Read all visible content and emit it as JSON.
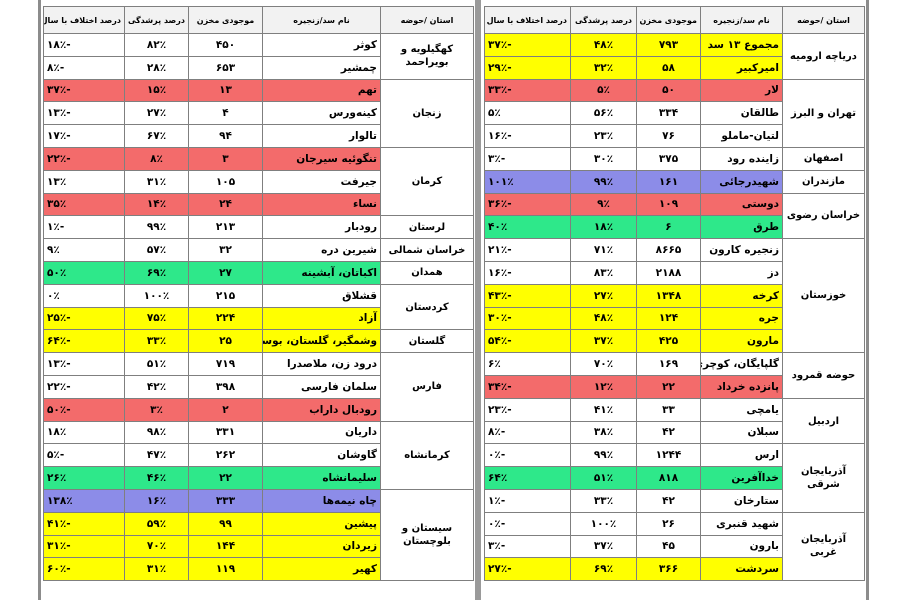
{
  "headers": {
    "province": "استان /حوضه",
    "dam": "نام سد/زنجیره",
    "storage": "موجودی مخزن",
    "fill_percent": "درصد پرشدگی",
    "diff_last_year": "درصد اختلاف با سال قبل"
  },
  "colors": {
    "yellow": "#ffff00",
    "red": "#f36b6b",
    "green": "#2ee88a",
    "blue": "#8c8ce8",
    "none": "#ffffff"
  },
  "right_table": {
    "rows": [
      {
        "province": "دریاچه ارومیه",
        "dam": "مجموع ۱۳ سد",
        "storage": "۷۹۳",
        "fill": "۴۸٪",
        "diff": "-۳۷٪",
        "color": "yellow"
      },
      {
        "province": "",
        "dam": "امیرکبیر",
        "storage": "۵۸",
        "fill": "۳۲٪",
        "diff": "-۲۹٪",
        "color": "yellow"
      },
      {
        "province": "تهران و البرز",
        "dam": "لار",
        "storage": "۵۰",
        "fill": "۵٪",
        "diff": "-۳۳٪",
        "color": "red"
      },
      {
        "province": "",
        "dam": "طالقان",
        "storage": "۳۳۴",
        "fill": "۵۶٪",
        "diff": "۵٪",
        "color": "none"
      },
      {
        "province": "",
        "dam": "لتیان-ماملو",
        "storage": "۷۶",
        "fill": "۲۳٪",
        "diff": "-۱۶٪",
        "color": "none"
      },
      {
        "province": "اصفهان",
        "dam": "زاینده رود",
        "storage": "۳۷۵",
        "fill": "۳۰٪",
        "diff": "-۳٪",
        "color": "none"
      },
      {
        "province": "مازندران",
        "dam": "شهیدرجائی",
        "storage": "۱۶۱",
        "fill": "۹۹٪",
        "diff": "۱۰۱٪",
        "color": "blue"
      },
      {
        "province": "خراسان رضوی",
        "dam": "دوستی",
        "storage": "۱۰۹",
        "fill": "۹٪",
        "diff": "-۳۶٪",
        "color": "red"
      },
      {
        "province": "",
        "dam": "طرق",
        "storage": "۶",
        "fill": "۱۸٪",
        "diff": "۴۰٪",
        "color": "green"
      },
      {
        "province": "خوزستان",
        "dam": "زنجیره کارون",
        "storage": "۸۶۶۵",
        "fill": "۷۱٪",
        "diff": "-۲۱٪",
        "color": "none"
      },
      {
        "province": "",
        "dam": "دز",
        "storage": "۲۱۸۸",
        "fill": "۸۳٪",
        "diff": "-۱۶٪",
        "color": "none"
      },
      {
        "province": "",
        "dam": "کرخه",
        "storage": "۱۳۴۸",
        "fill": "۲۷٪",
        "diff": "-۴۳٪",
        "color": "yellow"
      },
      {
        "province": "",
        "dam": "جره",
        "storage": "۱۲۴",
        "fill": "۴۸٪",
        "diff": "-۳۰٪",
        "color": "yellow"
      },
      {
        "province": "",
        "dam": "مارون",
        "storage": "۴۲۵",
        "fill": "۳۷٪",
        "diff": "-۵۴٪",
        "color": "yellow"
      },
      {
        "province": "حوضه قمرود",
        "dam": "گلپایگان، کوچری",
        "storage": "۱۶۹",
        "fill": "۷۰٪",
        "diff": "۶٪",
        "color": "none"
      },
      {
        "province": "",
        "dam": "پانزده خرداد",
        "storage": "۲۲",
        "fill": "۱۲٪",
        "diff": "-۳۴٪",
        "color": "red"
      },
      {
        "province": "اردبیل",
        "dam": "یامچی",
        "storage": "۳۳",
        "fill": "۴۱٪",
        "diff": "-۲۳٪",
        "color": "none"
      },
      {
        "province": "",
        "dam": "سبلان",
        "storage": "۴۲",
        "fill": "۳۸٪",
        "diff": "-۸٪",
        "color": "none"
      },
      {
        "province": "آذربایجان شرقی",
        "dam": "ارس",
        "storage": "۱۲۴۴",
        "fill": "۹۹٪",
        "diff": "-۰٪",
        "color": "none"
      },
      {
        "province": "",
        "dam": "خداآفرین",
        "storage": "۸۱۸",
        "fill": "۵۱٪",
        "diff": "۶۴٪",
        "color": "green"
      },
      {
        "province": "",
        "dam": "ستارخان",
        "storage": "۴۲",
        "fill": "۳۳٪",
        "diff": "-۱٪",
        "color": "none"
      },
      {
        "province": "آذربایجان غربی",
        "dam": "شهید قنبری",
        "storage": "۲۶",
        "fill": "۱۰۰٪",
        "diff": "-۰٪",
        "color": "none"
      },
      {
        "province": "",
        "dam": "بارون",
        "storage": "۴۵",
        "fill": "۳۷٪",
        "diff": "-۳٪",
        "color": "none"
      },
      {
        "province": "",
        "dam": "سردشت",
        "storage": "۳۶۶",
        "fill": "۶۹٪",
        "diff": "-۲۷٪",
        "color": "yellow"
      }
    ]
  },
  "left_table": {
    "rows": [
      {
        "province": "کهگیلویه و بویراحمد",
        "dam": "کوثر",
        "storage": "۴۵۰",
        "fill": "۸۲٪",
        "diff": "-۱۸٪",
        "color": "none"
      },
      {
        "province": "",
        "dam": "چمشیر",
        "storage": "۶۵۳",
        "fill": "۲۸٪",
        "diff": "-۸٪",
        "color": "none"
      },
      {
        "province": "زنجان",
        "dam": "تهم",
        "storage": "۱۳",
        "fill": "۱۵٪",
        "diff": "-۳۷٪",
        "color": "red"
      },
      {
        "province": "",
        "dam": "کینه‌ورس",
        "storage": "۴",
        "fill": "۲۷٪",
        "diff": "-۱۳٪",
        "color": "none"
      },
      {
        "province": "",
        "dam": "تالوار",
        "storage": "۹۴",
        "fill": "۶۷٪",
        "diff": "-۱۷٪",
        "color": "none"
      },
      {
        "province": "کرمان",
        "dam": "تنگوئیه سیرجان",
        "storage": "۳",
        "fill": "۸٪",
        "diff": "-۲۲٪",
        "color": "red"
      },
      {
        "province": "",
        "dam": "جیرفت",
        "storage": "۱۰۵",
        "fill": "۳۱٪",
        "diff": "۱۳٪",
        "color": "none"
      },
      {
        "province": "",
        "dam": "نساء",
        "storage": "۲۴",
        "fill": "۱۴٪",
        "diff": "۳۵٪",
        "color": "red"
      },
      {
        "province": "لرستان",
        "dam": "رودبار",
        "storage": "۲۱۳",
        "fill": "۹۹٪",
        "diff": "-۱٪",
        "color": "none"
      },
      {
        "province": "خراسان شمالی",
        "dam": "شیرین دره",
        "storage": "۳۲",
        "fill": "۵۷٪",
        "diff": "۹٪",
        "color": "none"
      },
      {
        "province": "همدان",
        "dam": "اکباتان، آبشینه",
        "storage": "۲۷",
        "fill": "۶۹٪",
        "diff": "۵۰٪",
        "color": "green"
      },
      {
        "province": "کردستان",
        "dam": "قشلاق",
        "storage": "۲۱۵",
        "fill": "۱۰۰٪",
        "diff": "۰٪",
        "color": "none"
      },
      {
        "province": "",
        "dam": "آزاد",
        "storage": "۲۲۴",
        "fill": "۷۵٪",
        "diff": "-۲۵٪",
        "color": "yellow"
      },
      {
        "province": "گلستان",
        "dam": "وشمگیر، گلستان، بوستان",
        "storage": "۲۵",
        "fill": "۳۳٪",
        "diff": "-۶۴٪",
        "color": "yellow"
      },
      {
        "province": "فارس",
        "dam": "درود زن، ملاصدرا",
        "storage": "۷۱۹",
        "fill": "۵۱٪",
        "diff": "-۱۳٪",
        "color": "none"
      },
      {
        "province": "",
        "dam": "سلمان فارسی",
        "storage": "۳۹۸",
        "fill": "۴۲٪",
        "diff": "-۲۲٪",
        "color": "none"
      },
      {
        "province": "",
        "dam": "رودبال داراب",
        "storage": "۲",
        "fill": "۳٪",
        "diff": "-۵۰٪",
        "color": "red"
      },
      {
        "province": "کرمانشاه",
        "dam": "داریان",
        "storage": "۳۳۱",
        "fill": "۹۸٪",
        "diff": "۱۸٪",
        "color": "none"
      },
      {
        "province": "",
        "dam": "گاوشان",
        "storage": "۲۶۲",
        "fill": "۴۷٪",
        "diff": "-۵٪",
        "color": "none"
      },
      {
        "province": "",
        "dam": "سلیمانشاه",
        "storage": "۲۲",
        "fill": "۴۶٪",
        "diff": "۲۶٪",
        "color": "green"
      },
      {
        "province": "سیستان و بلوچستان",
        "dam": "چاه نیمه‌ها",
        "storage": "۳۳۳",
        "fill": "۱۶٪",
        "diff": "۱۳۸٪",
        "color": "blue"
      },
      {
        "province": "",
        "dam": "پیشین",
        "storage": "۹۹",
        "fill": "۵۹٪",
        "diff": "-۴۱٪",
        "color": "yellow"
      },
      {
        "province": "",
        "dam": "زیردان",
        "storage": "۱۴۴",
        "fill": "۷۰٪",
        "diff": "-۳۱٪",
        "color": "yellow"
      },
      {
        "province": "",
        "dam": "کهیر",
        "storage": "۱۱۹",
        "fill": "۳۱٪",
        "diff": "-۶۰٪",
        "color": "yellow"
      }
    ]
  }
}
